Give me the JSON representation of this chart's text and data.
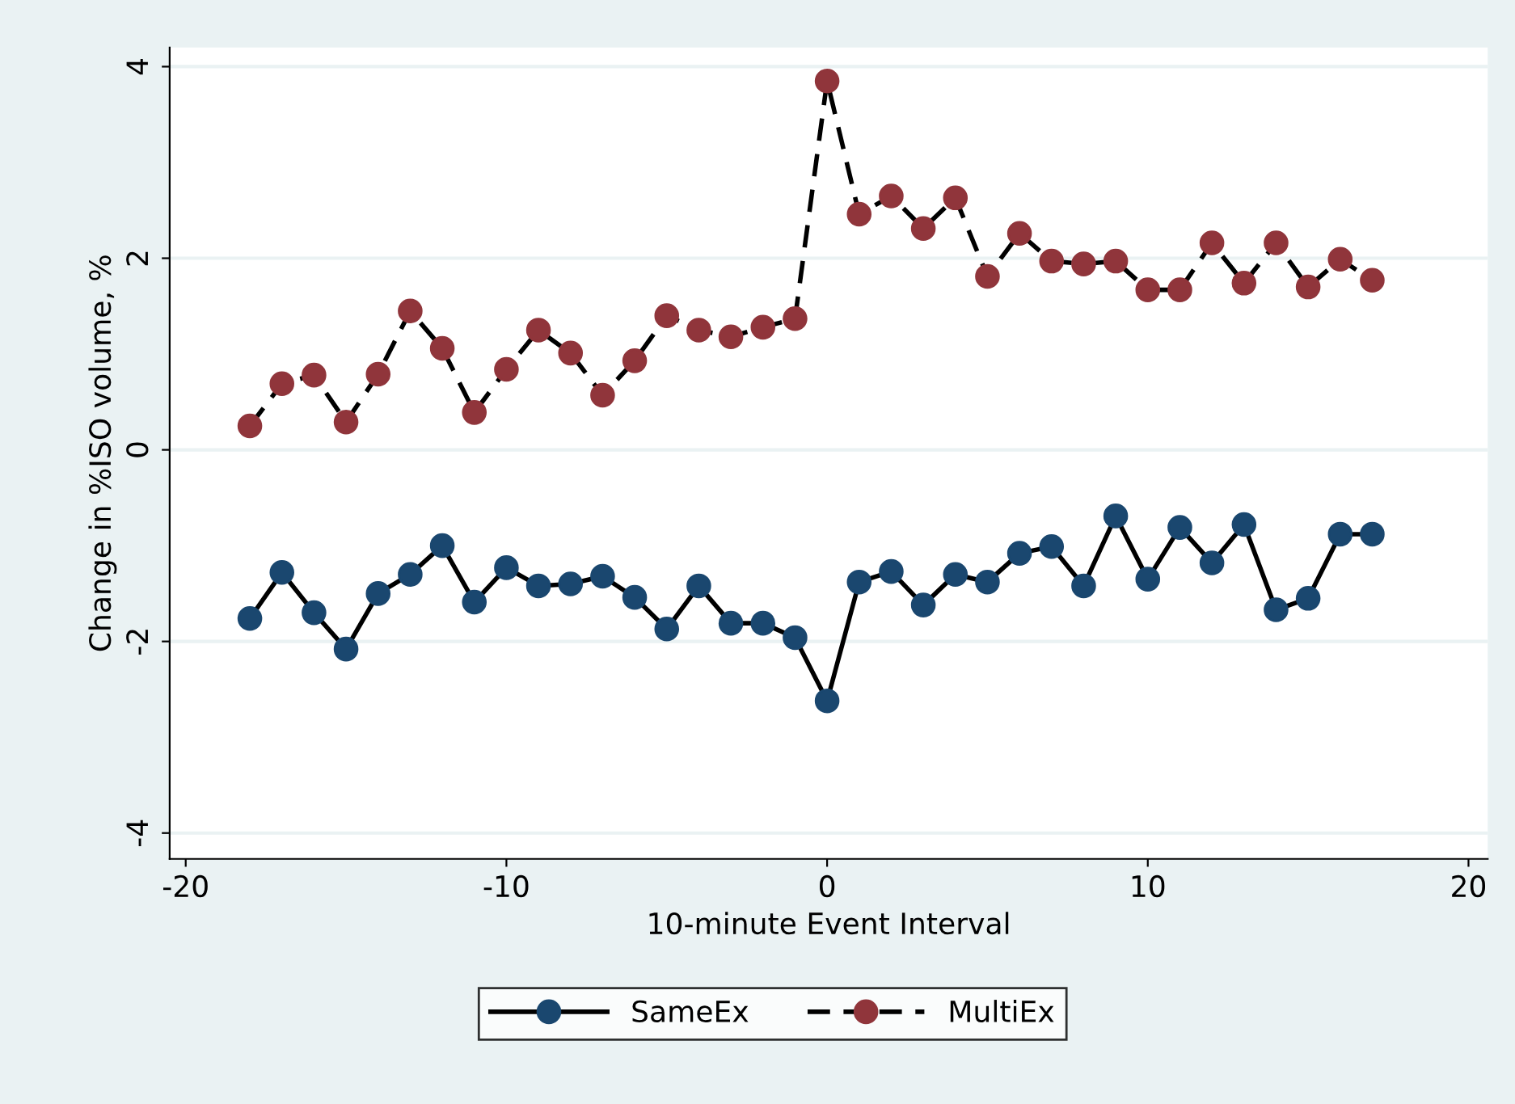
{
  "chart_data": {
    "type": "line",
    "xlabel": "10-minute Event Interval",
    "ylabel": "Change in %ISO volume, %",
    "x": [
      -18,
      -17,
      -16,
      -15,
      -14,
      -13,
      -12,
      -11,
      -10,
      -9,
      -8,
      -7,
      -6,
      -5,
      -4,
      -3,
      -2,
      -1,
      0,
      1,
      2,
      3,
      4,
      5,
      6,
      7,
      8,
      9,
      10,
      11,
      12,
      13,
      14,
      15,
      16,
      17
    ],
    "series": [
      {
        "name": "SameEx",
        "color": "#1a476f",
        "line_style": "solid",
        "values": [
          -1.76,
          -1.28,
          -1.7,
          -2.08,
          -1.5,
          -1.3,
          -1.0,
          -1.59,
          -1.23,
          -1.42,
          -1.4,
          -1.32,
          -1.54,
          -1.87,
          -1.42,
          -1.81,
          -1.81,
          -1.96,
          -2.62,
          -1.38,
          -1.27,
          -1.62,
          -1.3,
          -1.38,
          -1.08,
          -1.01,
          -1.42,
          -0.69,
          -1.35,
          -0.81,
          -1.18,
          -0.78,
          -1.67,
          -1.55,
          -0.88,
          -0.88
        ]
      },
      {
        "name": "MultiEx",
        "color": "#90353b",
        "line_style": "dashed",
        "values": [
          0.25,
          0.69,
          0.78,
          0.29,
          0.79,
          1.45,
          1.06,
          0.39,
          0.84,
          1.25,
          1.01,
          0.57,
          0.93,
          1.4,
          1.25,
          1.18,
          1.28,
          1.37,
          3.85,
          2.46,
          2.65,
          2.31,
          2.63,
          1.81,
          2.26,
          1.97,
          1.94,
          1.97,
          1.67,
          1.67,
          2.16,
          1.74,
          2.16,
          1.7,
          1.99,
          1.77
        ]
      }
    ],
    "xlim": [
      -20.5,
      20.6
    ],
    "ylim": [
      -4.27,
      4.2
    ],
    "xticks": [
      -20,
      -10,
      0,
      10,
      20
    ],
    "yticks": [
      -4,
      -2,
      0,
      2,
      4
    ],
    "grid": "y",
    "legend": "bottom",
    "marker": "circle"
  }
}
